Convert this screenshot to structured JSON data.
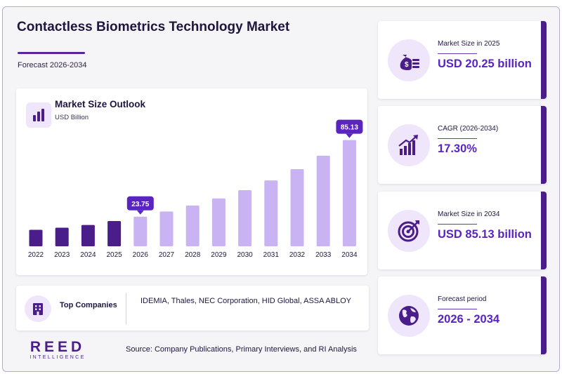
{
  "header": {
    "title": "Contactless Biometrics Technology Market",
    "subtitle": "Forecast 2026-2034"
  },
  "chart": {
    "title": "Market Size Outlook",
    "unit": "USD Billion"
  },
  "chart_data": {
    "type": "bar",
    "title": "Market Size Outlook",
    "ylabel": "USD Billion",
    "categories": [
      "2022",
      "2023",
      "2024",
      "2025",
      "2026",
      "2027",
      "2028",
      "2029",
      "2030",
      "2031",
      "2032",
      "2033",
      "2034"
    ],
    "values": [
      13.2,
      14.9,
      17.1,
      20.25,
      23.75,
      27.9,
      32.7,
      38.4,
      45.0,
      52.8,
      61.9,
      72.6,
      85.13
    ],
    "historical_end": "2025",
    "callouts": [
      {
        "category": "2026",
        "label": "23.75"
      },
      {
        "category": "2034",
        "label": "85.13"
      }
    ],
    "ylim": [
      0,
      90
    ],
    "grid": false
  },
  "companies": {
    "label": "Top Companies",
    "list": "IDEMIA, Thales, NEC Corporation, HID Global, ASSA ABLOY"
  },
  "logo": {
    "main": "REED",
    "sub": "INTELLIGENCE"
  },
  "source": "Source: Company Publications, Primary Interviews, and RI Analysis",
  "stats": [
    {
      "label": "Market Size in 2025",
      "value": "USD 20.25 billion",
      "icon": "money-bag-icon"
    },
    {
      "label": "CAGR (2026-2034)",
      "value": "17.30%",
      "icon": "growth-chart-icon"
    },
    {
      "label": "Market Size in 2034",
      "value": "USD 85.13 billion",
      "icon": "target-icon"
    },
    {
      "label": "Forecast period",
      "value": "2026 - 2034",
      "icon": "globe-icon"
    }
  ],
  "colors": {
    "historical_bar": "#4a1d8a",
    "forecast_bar": "#c9b3f2",
    "callout": "#5a24c0",
    "accent": "#4a1d8a"
  }
}
